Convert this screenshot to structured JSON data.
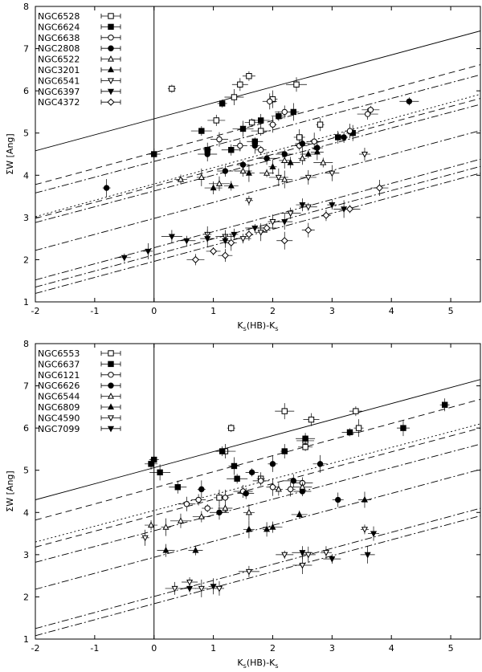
{
  "chart_data": [
    {
      "type": "scatter",
      "title": "",
      "xlabel": "K",
      "xlabel_sub": "s",
      "xlabel_mid": "(HB)-K",
      "xlabel_sub2": "s",
      "ylabel": "ΣW [Ang]",
      "xlim": [
        -2,
        5.5
      ],
      "ylim": [
        1,
        8
      ],
      "xticks": [
        -2,
        -1,
        0,
        1,
        2,
        3,
        4,
        5
      ],
      "yticks": [
        1,
        2,
        3,
        4,
        5,
        6,
        7,
        8
      ],
      "vertical_line_x": 0,
      "legend_position": "top-left",
      "legend": [
        "NGC6528",
        "NGC6624",
        "NGC6638",
        "NGC2808",
        "NGC6522",
        "NGC3201",
        "NGC6541",
        "NGC6397",
        "NGC4372"
      ],
      "lines": [
        {
          "style": "solid",
          "x": [
            -2,
            5.5
          ],
          "y": [
            4.58,
            7.42
          ]
        },
        {
          "style": "dashed",
          "x": [
            -2,
            5.5
          ],
          "y": [
            3.78,
            6.62
          ]
        },
        {
          "style": "dash-dot",
          "x": [
            -2,
            5.5
          ],
          "y": [
            3.58,
            6.38
          ]
        },
        {
          "style": "dotted",
          "x": [
            -2,
            5.5
          ],
          "y": [
            3.02,
            5.92
          ]
        },
        {
          "style": "dashed",
          "x": [
            -2,
            5.5
          ],
          "y": [
            2.98,
            5.82
          ]
        },
        {
          "style": "dash-dot",
          "x": [
            -2,
            5.5
          ],
          "y": [
            2.88,
            5.68
          ]
        },
        {
          "style": "dash-dot",
          "x": [
            -2,
            5.5
          ],
          "y": [
            2.22,
            5.06
          ]
        },
        {
          "style": "dash-dot",
          "x": [
            -2,
            5.5
          ],
          "y": [
            1.52,
            4.38
          ]
        },
        {
          "style": "dash-dot",
          "x": [
            -2,
            5.5
          ],
          "y": [
            1.35,
            4.21
          ]
        },
        {
          "style": "dash-dot",
          "x": [
            -2,
            5.5
          ],
          "y": [
            1.2,
            4.05
          ]
        }
      ],
      "series": [
        {
          "name": "NGC6528",
          "marker": "square-open",
          "points": [
            [
              0.3,
              6.05
            ],
            [
              1.35,
              5.85
            ],
            [
              1.45,
              6.15
            ],
            [
              1.6,
              6.35
            ],
            [
              2.0,
              5.8
            ],
            [
              2.4,
              6.15
            ],
            [
              1.05,
              5.3
            ],
            [
              1.65,
              5.25
            ],
            [
              2.45,
              4.9
            ],
            [
              2.8,
              5.2
            ],
            [
              1.8,
              5.05
            ]
          ]
        },
        {
          "name": "NGC6624",
          "marker": "square-filled",
          "points": [
            [
              0.0,
              4.5
            ],
            [
              1.15,
              5.7
            ],
            [
              1.5,
              5.1
            ],
            [
              1.8,
              5.3
            ],
            [
              2.1,
              5.4
            ],
            [
              2.35,
              5.5
            ],
            [
              0.9,
              4.6
            ],
            [
              1.3,
              4.6
            ],
            [
              1.7,
              4.8
            ],
            [
              3.35,
              5.0
            ],
            [
              3.1,
              4.9
            ],
            [
              0.8,
              5.05
            ]
          ]
        },
        {
          "name": "NGC6638",
          "marker": "circle-open",
          "points": [
            [
              1.1,
              4.85
            ],
            [
              1.45,
              4.7
            ],
            [
              1.8,
              4.6
            ],
            [
              2.0,
              5.2
            ],
            [
              2.2,
              5.5
            ],
            [
              2.45,
              4.7
            ],
            [
              2.7,
              4.8
            ],
            [
              3.3,
              5.05
            ],
            [
              3.6,
              5.45
            ],
            [
              3.65,
              5.55
            ],
            [
              1.95,
              5.75
            ]
          ]
        },
        {
          "name": "NGC2808",
          "marker": "circle-filled",
          "points": [
            [
              -0.8,
              3.7
            ],
            [
              0.9,
              4.5
            ],
            [
              1.2,
              4.1
            ],
            [
              1.5,
              4.25
            ],
            [
              1.7,
              4.7
            ],
            [
              1.9,
              4.4
            ],
            [
              2.2,
              4.5
            ],
            [
              2.5,
              4.75
            ],
            [
              2.75,
              4.65
            ],
            [
              3.2,
              4.9
            ],
            [
              4.3,
              5.75
            ]
          ]
        },
        {
          "name": "NGC6522",
          "marker": "triangle-open",
          "points": [
            [
              0.45,
              3.9
            ],
            [
              0.8,
              3.95
            ],
            [
              1.1,
              3.8
            ],
            [
              1.5,
              4.1
            ],
            [
              1.9,
              4.05
            ],
            [
              2.2,
              4.35
            ],
            [
              2.5,
              4.4
            ],
            [
              2.85,
              4.3
            ],
            [
              2.2,
              3.9
            ]
          ]
        },
        {
          "name": "NGC3201",
          "marker": "triangle-filled",
          "points": [
            [
              1.0,
              3.7
            ],
            [
              1.3,
              3.75
            ],
            [
              1.6,
              4.05
            ],
            [
              2.0,
              4.2
            ],
            [
              2.3,
              4.3
            ],
            [
              2.6,
              4.5
            ],
            [
              2.75,
              4.55
            ]
          ]
        },
        {
          "name": "NGC6541",
          "marker": "triangle-down-open",
          "points": [
            [
              0.9,
              2.6
            ],
            [
              1.2,
              2.55
            ],
            [
              1.5,
              2.5
            ],
            [
              1.8,
              2.65
            ],
            [
              2.0,
              2.9
            ],
            [
              2.3,
              3.1
            ],
            [
              2.6,
              3.25
            ],
            [
              3.0,
              4.05
            ],
            [
              3.55,
              4.5
            ],
            [
              1.6,
              3.4
            ],
            [
              2.1,
              3.95
            ],
            [
              2.6,
              3.95
            ]
          ]
        },
        {
          "name": "NGC6397",
          "marker": "triangle-down-filled",
          "points": [
            [
              -0.5,
              2.05
            ],
            [
              -0.1,
              2.2
            ],
            [
              0.3,
              2.55
            ],
            [
              0.55,
              2.45
            ],
            [
              0.9,
              2.5
            ],
            [
              1.2,
              2.45
            ],
            [
              1.35,
              2.6
            ],
            [
              1.7,
              2.75
            ],
            [
              2.2,
              2.9
            ],
            [
              2.5,
              3.3
            ],
            [
              3.0,
              3.3
            ],
            [
              3.2,
              3.2
            ]
          ]
        },
        {
          "name": "NGC4372",
          "marker": "diamond-open",
          "points": [
            [
              0.7,
              2.0
            ],
            [
              1.0,
              2.2
            ],
            [
              1.3,
              2.4
            ],
            [
              1.6,
              2.6
            ],
            [
              1.9,
              2.75
            ],
            [
              2.2,
              2.45
            ],
            [
              2.6,
              2.7
            ],
            [
              2.9,
              3.05
            ],
            [
              3.3,
              3.2
            ],
            [
              3.8,
              3.7
            ],
            [
              1.2,
              2.1
            ]
          ]
        }
      ]
    },
    {
      "type": "scatter",
      "title": "",
      "xlabel": "K",
      "xlabel_sub": "s",
      "xlabel_mid": "(HB)-K",
      "xlabel_sub2": "s",
      "ylabel": "ΣW [Ang]",
      "xlim": [
        -2,
        5.5
      ],
      "ylim": [
        1,
        8
      ],
      "xticks": [
        -2,
        -1,
        0,
        1,
        2,
        3,
        4,
        5
      ],
      "yticks": [
        1,
        2,
        3,
        4,
        5,
        6,
        7,
        8
      ],
      "vertical_line_x": 0,
      "legend_position": "top-left",
      "legend": [
        "NGC6553",
        "NGC6637",
        "NGC6121",
        "NGC6626",
        "NGC6544",
        "NGC6809",
        "NGC4590",
        "NGC7099"
      ],
      "lines": [
        {
          "style": "solid",
          "x": [
            -2,
            5.5
          ],
          "y": [
            4.3,
            7.15
          ]
        },
        {
          "style": "dashed",
          "x": [
            -2,
            5.5
          ],
          "y": [
            3.82,
            6.68
          ]
        },
        {
          "style": "dotted",
          "x": [
            -2,
            5.5
          ],
          "y": [
            3.3,
            6.1
          ]
        },
        {
          "style": "dashed",
          "x": [
            -2,
            5.5
          ],
          "y": [
            3.18,
            6.0
          ]
        },
        {
          "style": "dash-dot",
          "x": [
            -2,
            5.5
          ],
          "y": [
            2.82,
            5.62
          ]
        },
        {
          "style": "dash-dot",
          "x": [
            -2,
            5.5
          ],
          "y": [
            2.18,
            5.02
          ]
        },
        {
          "style": "dash-dot",
          "x": [
            -2,
            5.5
          ],
          "y": [
            1.25,
            4.1
          ]
        },
        {
          "style": "dash-dot",
          "x": [
            -2,
            5.5
          ],
          "y": [
            1.08,
            3.92
          ]
        }
      ],
      "series": [
        {
          "name": "NGC6553",
          "marker": "square-open",
          "points": [
            [
              1.3,
              6.0
            ],
            [
              2.2,
              6.4
            ],
            [
              2.65,
              6.2
            ],
            [
              3.4,
              6.4
            ],
            [
              3.45,
              6.0
            ],
            [
              1.2,
              5.45
            ],
            [
              2.55,
              5.7
            ],
            [
              2.55,
              5.55
            ],
            [
              1.1,
              4.35
            ],
            [
              1.8,
              4.8
            ]
          ]
        },
        {
          "name": "NGC6637",
          "marker": "square-filled",
          "points": [
            [
              -0.05,
              5.15
            ],
            [
              0.0,
              5.25
            ],
            [
              0.1,
              4.95
            ],
            [
              0.4,
              4.6
            ],
            [
              1.15,
              5.45
            ],
            [
              1.35,
              5.1
            ],
            [
              2.2,
              5.45
            ],
            [
              2.55,
              5.75
            ],
            [
              3.3,
              5.9
            ],
            [
              4.2,
              6.0
            ],
            [
              4.9,
              6.55
            ],
            [
              1.4,
              4.8
            ]
          ]
        },
        {
          "name": "NGC6121",
          "marker": "circle-open",
          "points": [
            [
              0.55,
              4.2
            ],
            [
              0.75,
              4.3
            ],
            [
              0.9,
              4.1
            ],
            [
              1.2,
              4.35
            ],
            [
              1.5,
              4.5
            ],
            [
              1.8,
              4.75
            ],
            [
              2.0,
              4.6
            ],
            [
              2.3,
              4.55
            ],
            [
              2.5,
              4.7
            ]
          ]
        },
        {
          "name": "NGC6626",
          "marker": "circle-filled",
          "points": [
            [
              0.8,
              4.55
            ],
            [
              1.1,
              4.0
            ],
            [
              1.55,
              4.45
            ],
            [
              1.65,
              4.95
            ],
            [
              2.0,
              5.15
            ],
            [
              2.35,
              4.75
            ],
            [
              2.5,
              4.5
            ],
            [
              2.8,
              5.15
            ],
            [
              3.1,
              4.3
            ]
          ]
        },
        {
          "name": "NGC6544",
          "marker": "triangle-open",
          "points": [
            [
              -0.05,
              3.7
            ],
            [
              0.2,
              3.65
            ],
            [
              0.45,
              3.8
            ],
            [
              0.8,
              3.9
            ],
            [
              1.2,
              4.1
            ],
            [
              1.6,
              4.0
            ],
            [
              2.1,
              4.55
            ],
            [
              2.5,
              4.6
            ]
          ]
        },
        {
          "name": "NGC6809",
          "marker": "triangle-filled",
          "points": [
            [
              0.2,
              3.1
            ],
            [
              0.7,
              3.1
            ],
            [
              1.6,
              3.6
            ],
            [
              1.9,
              3.6
            ],
            [
              2.0,
              3.65
            ],
            [
              2.45,
              3.95
            ],
            [
              3.55,
              4.3
            ]
          ]
        },
        {
          "name": "NGC4590",
          "marker": "triangle-down-open",
          "points": [
            [
              -0.15,
              3.4
            ],
            [
              0.35,
              2.2
            ],
            [
              0.6,
              2.35
            ],
            [
              0.8,
              2.2
            ],
            [
              1.1,
              2.2
            ],
            [
              1.6,
              2.6
            ],
            [
              2.2,
              3.0
            ],
            [
              2.6,
              3.0
            ],
            [
              2.9,
              3.05
            ],
            [
              3.55,
              3.6
            ],
            [
              2.5,
              2.75
            ]
          ]
        },
        {
          "name": "NGC7099",
          "marker": "triangle-down-filled",
          "points": [
            [
              0.6,
              2.2
            ],
            [
              1.0,
              2.25
            ],
            [
              2.5,
              3.05
            ],
            [
              3.0,
              2.9
            ],
            [
              3.6,
              3.0
            ],
            [
              3.7,
              3.5
            ]
          ]
        }
      ]
    }
  ]
}
